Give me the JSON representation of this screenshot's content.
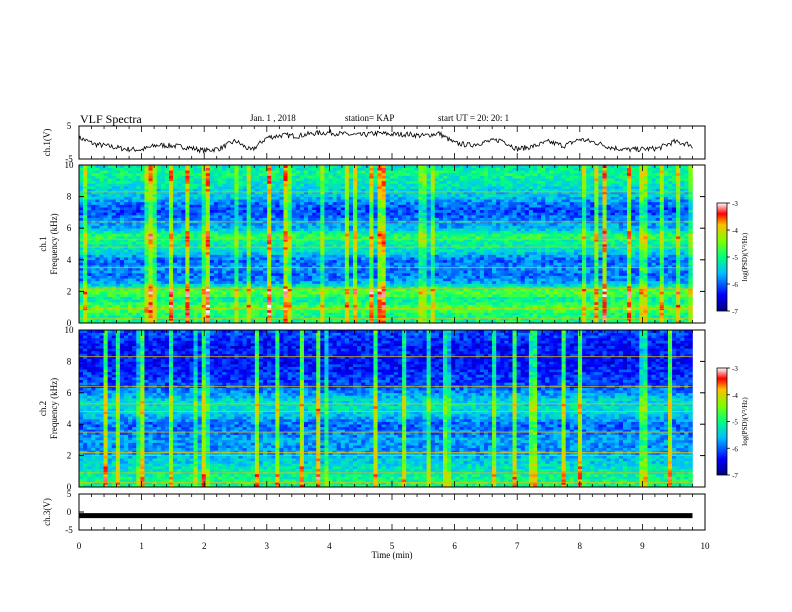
{
  "header": {
    "title": "VLF Spectra",
    "date": "Jan. 1 , 2018",
    "station": "station= KAP",
    "start": "start UT = 20: 20: 1"
  },
  "chart_data": [
    {
      "type": "line",
      "panel": "ch1-waveform",
      "ylabel": "ch.1(V)",
      "ylim": [
        -5,
        5
      ],
      "yticks": [
        5,
        -5
      ],
      "xlim": [
        0,
        10
      ],
      "color": "#000000",
      "x": [
        0,
        0.25,
        0.5,
        0.75,
        1.0,
        1.25,
        1.5,
        1.75,
        2.0,
        2.25,
        2.5,
        2.75,
        3.0,
        3.25,
        3.5,
        3.75,
        4.0,
        4.25,
        4.5,
        4.75,
        5.0,
        5.25,
        5.5,
        5.75,
        6.0,
        6.25,
        6.5,
        6.75,
        7.0,
        7.25,
        7.5,
        7.75,
        8.0,
        8.25,
        8.5,
        8.75,
        9.0,
        9.25,
        9.5,
        9.75,
        9.8
      ],
      "values": [
        1.5,
        -0.5,
        -1.2,
        -2.0,
        -2.2,
        -0.8,
        -1.0,
        -1.5,
        -2.5,
        -1.8,
        0.5,
        -2.5,
        1.5,
        2.2,
        2.0,
        2.8,
        3.0,
        2.5,
        2.2,
        2.8,
        2.5,
        2.5,
        2.0,
        2.8,
        -0.2,
        -0.8,
        0.2,
        0.8,
        -2.0,
        -1.2,
        0.2,
        -1.0,
        1.0,
        0.0,
        -1.5,
        -2.2,
        -2.0,
        -1.8,
        0.2,
        -0.5,
        -1.5
      ]
    },
    {
      "type": "heatmap",
      "panel": "ch1-spectrogram",
      "ylabel": "ch.1 Frequency (kHz)",
      "xlim": [
        0,
        10
      ],
      "ylim": [
        0,
        10
      ],
      "yticks": [
        0,
        2,
        4,
        6,
        8,
        10
      ],
      "colorbar": {
        "label": "log(PSD)(V²/Hz)",
        "ticks": [
          -3,
          -4,
          -5,
          -6,
          -7
        ],
        "range": [
          -7,
          -3
        ]
      },
      "level_profile_by_freq_khz": [
        {
          "f": 0.5,
          "level": -5.0
        },
        {
          "f": 1.0,
          "level": -4.6
        },
        {
          "f": 1.5,
          "level": -5.2
        },
        {
          "f": 2.0,
          "level": -4.5
        },
        {
          "f": 2.5,
          "level": -5.6
        },
        {
          "f": 3.0,
          "level": -6.0
        },
        {
          "f": 3.5,
          "level": -5.8
        },
        {
          "f": 4.0,
          "level": -6.0
        },
        {
          "f": 4.5,
          "level": -5.4
        },
        {
          "f": 5.0,
          "level": -5.2
        },
        {
          "f": 5.5,
          "level": -4.8
        },
        {
          "f": 6.0,
          "level": -5.6
        },
        {
          "f": 6.5,
          "level": -5.8
        },
        {
          "f": 7.0,
          "level": -6.1
        },
        {
          "f": 7.5,
          "level": -6.0
        },
        {
          "f": 8.0,
          "level": -5.5
        },
        {
          "f": 8.5,
          "level": -5.4
        },
        {
          "f": 9.0,
          "level": -5.2
        },
        {
          "f": 9.5,
          "level": -5.0
        },
        {
          "f": 10.0,
          "level": -5.3
        }
      ]
    },
    {
      "type": "heatmap",
      "panel": "ch2-spectrogram",
      "ylabel": "ch.2 Frequency (kHz)",
      "xlim": [
        0,
        10
      ],
      "ylim": [
        0,
        10
      ],
      "yticks": [
        0,
        2,
        4,
        6,
        8,
        10
      ],
      "colorbar": {
        "label": "log(PSD)(V²/Hz)",
        "ticks": [
          -3,
          -4,
          -5,
          -6,
          -7
        ],
        "range": [
          -7,
          -3
        ]
      },
      "level_profile_by_freq_khz": [
        {
          "f": 0.5,
          "level": -5.0
        },
        {
          "f": 1.0,
          "level": -5.2
        },
        {
          "f": 1.5,
          "level": -5.4
        },
        {
          "f": 2.0,
          "level": -5.6
        },
        {
          "f": 2.5,
          "level": -5.8
        },
        {
          "f": 3.0,
          "level": -5.7
        },
        {
          "f": 3.5,
          "level": -5.9
        },
        {
          "f": 4.0,
          "level": -6.0
        },
        {
          "f": 4.5,
          "level": -5.6
        },
        {
          "f": 5.0,
          "level": -5.3
        },
        {
          "f": 5.5,
          "level": -5.4
        },
        {
          "f": 6.0,
          "level": -5.8
        },
        {
          "f": 6.5,
          "level": -6.1
        },
        {
          "f": 7.0,
          "level": -6.2
        },
        {
          "f": 7.5,
          "level": -6.3
        },
        {
          "f": 8.0,
          "level": -6.4
        },
        {
          "f": 8.5,
          "level": -6.3
        },
        {
          "f": 9.0,
          "level": -6.4
        },
        {
          "f": 9.5,
          "level": -6.2
        },
        {
          "f": 10.0,
          "level": -6.1
        }
      ]
    },
    {
      "type": "line",
      "panel": "ch3-waveform",
      "ylabel": "ch.3(V)",
      "ylim": [
        -5,
        5
      ],
      "yticks": [
        5,
        0,
        -5
      ],
      "xlim": [
        0,
        10
      ],
      "xticks": [
        0,
        1,
        2,
        3,
        4,
        5,
        6,
        7,
        8,
        9,
        10
      ],
      "xlabel": "Time (min)",
      "x": [
        0,
        9.8
      ],
      "values": [
        -1,
        -1
      ],
      "color": "#000000"
    }
  ]
}
